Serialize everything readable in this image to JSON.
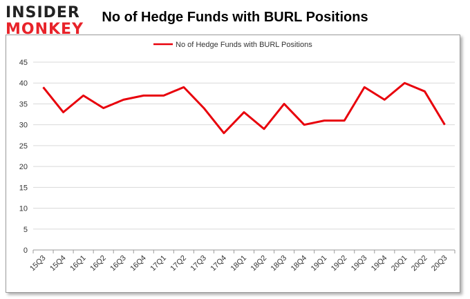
{
  "header": {
    "logo_line1": "INSIDER",
    "logo_line2": "MONKEY",
    "title": "No of Hedge Funds with BURL Positions"
  },
  "chart_data": {
    "type": "line",
    "title": "No of Hedge Funds with BURL Positions",
    "xlabel": "",
    "ylabel": "",
    "categories": [
      "15Q3",
      "15Q4",
      "16Q1",
      "16Q2",
      "16Q3",
      "16Q4",
      "17Q1",
      "17Q2",
      "17Q3",
      "17Q4",
      "18Q1",
      "18Q2",
      "18Q3",
      "18Q4",
      "19Q1",
      "19Q2",
      "19Q3",
      "19Q4",
      "20Q1",
      "20Q2",
      "20Q3"
    ],
    "series": [
      {
        "name": "No of Hedge Funds with BURL Positions",
        "color": "#e8000b",
        "values": [
          39,
          33,
          37,
          34,
          36,
          37,
          37,
          39,
          34,
          28,
          33,
          29,
          35,
          30,
          31,
          31,
          39,
          36,
          40,
          38,
          30
        ]
      }
    ],
    "ylim": [
      0,
      45
    ],
    "yticks": [
      0,
      5,
      10,
      15,
      20,
      25,
      30,
      35,
      40,
      45
    ],
    "grid": true,
    "legend_position": "top-center"
  }
}
